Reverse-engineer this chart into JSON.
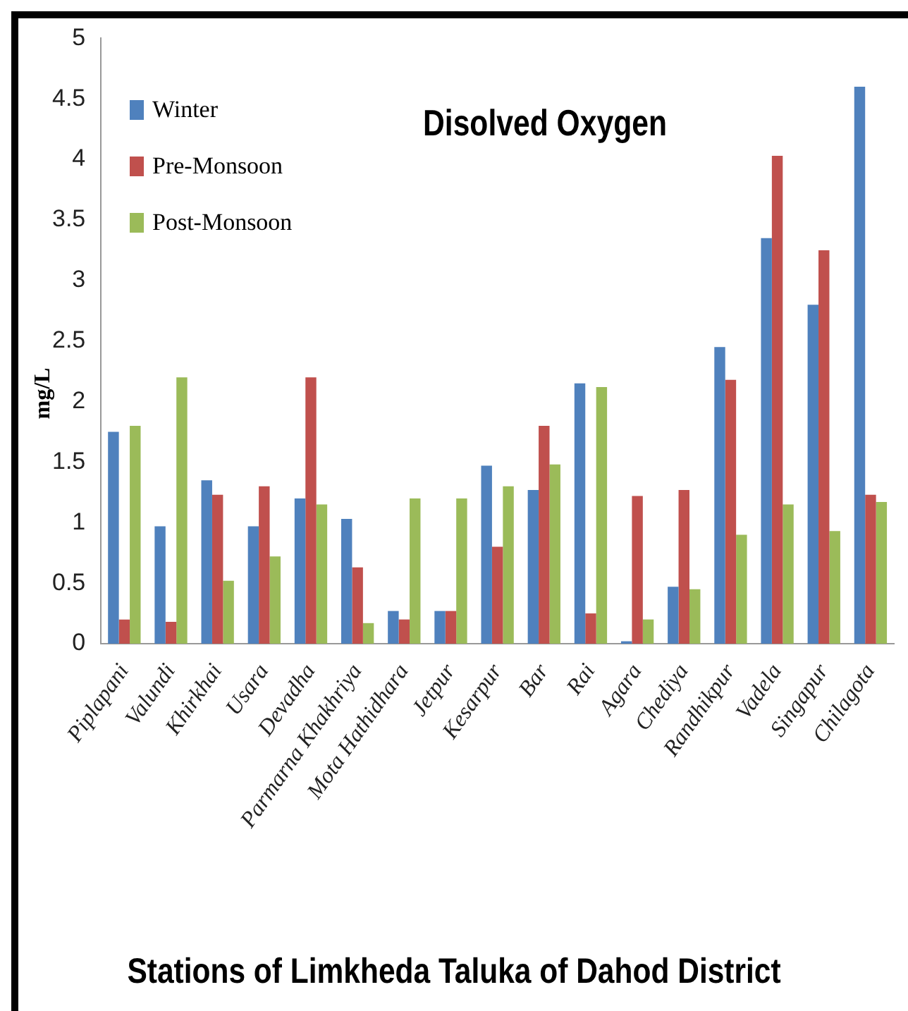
{
  "chart_data": {
    "type": "bar",
    "title": "Disolved Oxygen",
    "xlabel": "Stations of Limkheda Taluka of Dahod District",
    "ylabel": "mg/L",
    "categories": [
      "Piplapani",
      "Valundi",
      "Khirkhai",
      "Usara",
      "Devadha",
      "Parmarna Khakhriya",
      "Mota Hathidhara",
      "Jetpur",
      "Kesarpur",
      "Bar",
      "Rai",
      "Agara",
      "Chediya",
      "Randhikpur",
      "Vadela",
      "Singapur",
      "Chilagota"
    ],
    "series": [
      {
        "name": "Winter",
        "color": "#4f81bd",
        "values": [
          1.75,
          0.97,
          1.35,
          0.97,
          1.2,
          1.03,
          0.27,
          0.27,
          1.47,
          1.27,
          2.15,
          0.02,
          0.47,
          2.45,
          3.35,
          2.8,
          4.6
        ]
      },
      {
        "name": "Pre-Monsoon",
        "color": "#c0504d",
        "values": [
          0.2,
          0.18,
          1.23,
          1.3,
          2.2,
          0.63,
          0.2,
          0.27,
          0.8,
          1.8,
          0.25,
          1.22,
          1.27,
          2.18,
          4.03,
          3.25,
          1.23
        ]
      },
      {
        "name": "Post-Monsoon",
        "color": "#9bbb59",
        "values": [
          1.8,
          2.2,
          0.52,
          0.72,
          1.15,
          0.17,
          1.2,
          1.2,
          1.3,
          1.48,
          2.12,
          0.2,
          0.45,
          0.9,
          1.15,
          0.93,
          1.17
        ]
      }
    ],
    "ylim": [
      0,
      5
    ],
    "yticks": [
      0,
      0.5,
      1,
      1.5,
      2,
      2.5,
      3,
      3.5,
      4,
      4.5,
      5
    ],
    "grid": false,
    "legend": "top left"
  }
}
